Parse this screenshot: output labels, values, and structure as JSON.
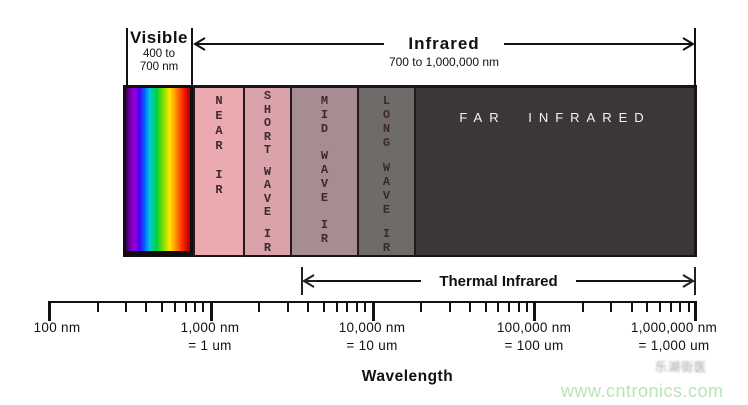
{
  "header": {
    "visible": {
      "title": "Visible",
      "range_line1": "400 to",
      "range_line2": "700 nm"
    },
    "infrared": {
      "title": "Infrared",
      "range": "700 to 1,000,000 nm"
    }
  },
  "bands": [
    {
      "name": "visible-spectrum",
      "type": "rainbow",
      "label_words": []
    },
    {
      "name": "near-ir",
      "label_words": [
        "NEAR",
        "IR"
      ],
      "color": "#eba9b0"
    },
    {
      "name": "short-wave-ir",
      "label_words": [
        "SHORT",
        "WAVE",
        "IR"
      ],
      "color": "#d9a3a9"
    },
    {
      "name": "mid-wave-ir",
      "label_words": [
        "MID",
        "WAVE",
        "IR"
      ],
      "color": "#a78d91"
    },
    {
      "name": "long-wave-ir",
      "label_words": [
        "LONG",
        "WAVE",
        "IR"
      ],
      "color": "#6f6b68"
    },
    {
      "name": "far-infrared",
      "label": "FAR INFRARED",
      "color": "#3b3738",
      "text_color": "#f5f3f0"
    }
  ],
  "thermal": {
    "label": "Thermal Infrared"
  },
  "axis": {
    "scale": "log",
    "ticks": [
      {
        "label": "100 nm",
        "sub": ""
      },
      {
        "label": "1,000 nm",
        "sub": "= 1 um"
      },
      {
        "label": "10,000 nm",
        "sub": "= 10 um"
      },
      {
        "label": "100,000 nm",
        "sub": "= 100 um"
      },
      {
        "label": "1,000,000 nm",
        "sub": "= 1,000 um"
      }
    ]
  },
  "wavelength_title": "Wavelength",
  "watermark": {
    "cjk": "乐湖街医",
    "site": "www.cntronics.com"
  },
  "chart_data": {
    "type": "diagram",
    "subtype": "electromagnetic-spectrum",
    "xlabel": "Wavelength",
    "x_scale": "log",
    "x_ticks_nm": [
      100,
      1000,
      10000,
      100000,
      1000000
    ],
    "regions": [
      {
        "label": "Visible",
        "range_text": "400 to 700 nm"
      },
      {
        "label": "Infrared",
        "range_text": "700 to 1,000,000 nm"
      },
      {
        "label": "NEAR IR"
      },
      {
        "label": "SHORT WAVE IR"
      },
      {
        "label": "MID WAVE IR"
      },
      {
        "label": "LONG WAVE IR"
      },
      {
        "label": "FAR INFRARED"
      },
      {
        "label": "Thermal Infrared"
      }
    ]
  }
}
